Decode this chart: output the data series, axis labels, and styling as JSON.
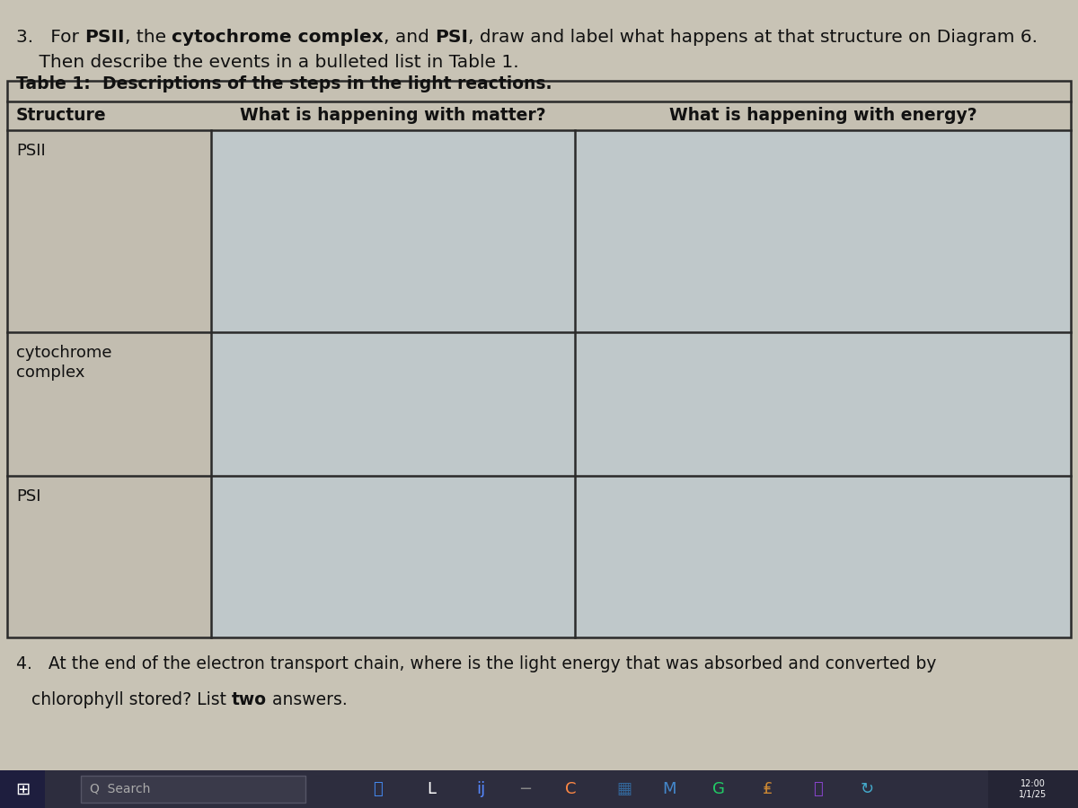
{
  "q3_line1_parts": [
    [
      "3.   For ",
      false
    ],
    [
      "PSII",
      true
    ],
    [
      ", the ",
      false
    ],
    [
      "cytochrome complex",
      true
    ],
    [
      ", and ",
      false
    ],
    [
      "PSI",
      true
    ],
    [
      ", draw and label what happens at that structure on Diagram 6.",
      false
    ]
  ],
  "q3_line2": "    Then describe the events in a bulleted list in Table 1.",
  "table_title_parts": [
    [
      "Table 1:  ",
      true
    ],
    [
      "Descriptions of the steps in the light reactions.",
      true
    ]
  ],
  "col_headers": [
    "Structure",
    "What is happening with matter?",
    "What is happening with energy?"
  ],
  "row_labels": [
    "PSII",
    "cytochrome\ncomplex",
    "PSI"
  ],
  "q4_line1_parts": [
    [
      "4.   At the end of the electron transport chain, where is the light energy that was absorbed and converted by",
      false
    ]
  ],
  "q4_line2_parts": [
    [
      "chlorophyll stored? List ",
      false
    ],
    [
      "two",
      true
    ],
    [
      " answers.",
      false
    ]
  ],
  "bg_color": "#c8c3b5",
  "cell_color_right": "#c2c8c8",
  "cell_color_left": "#c5c0b2",
  "table_border_color": "#2a2a2a",
  "text_color": "#111111",
  "taskbar_color": "#1a1a2e",
  "fig_width": 12.0,
  "fig_height": 9.0,
  "dpi": 100
}
